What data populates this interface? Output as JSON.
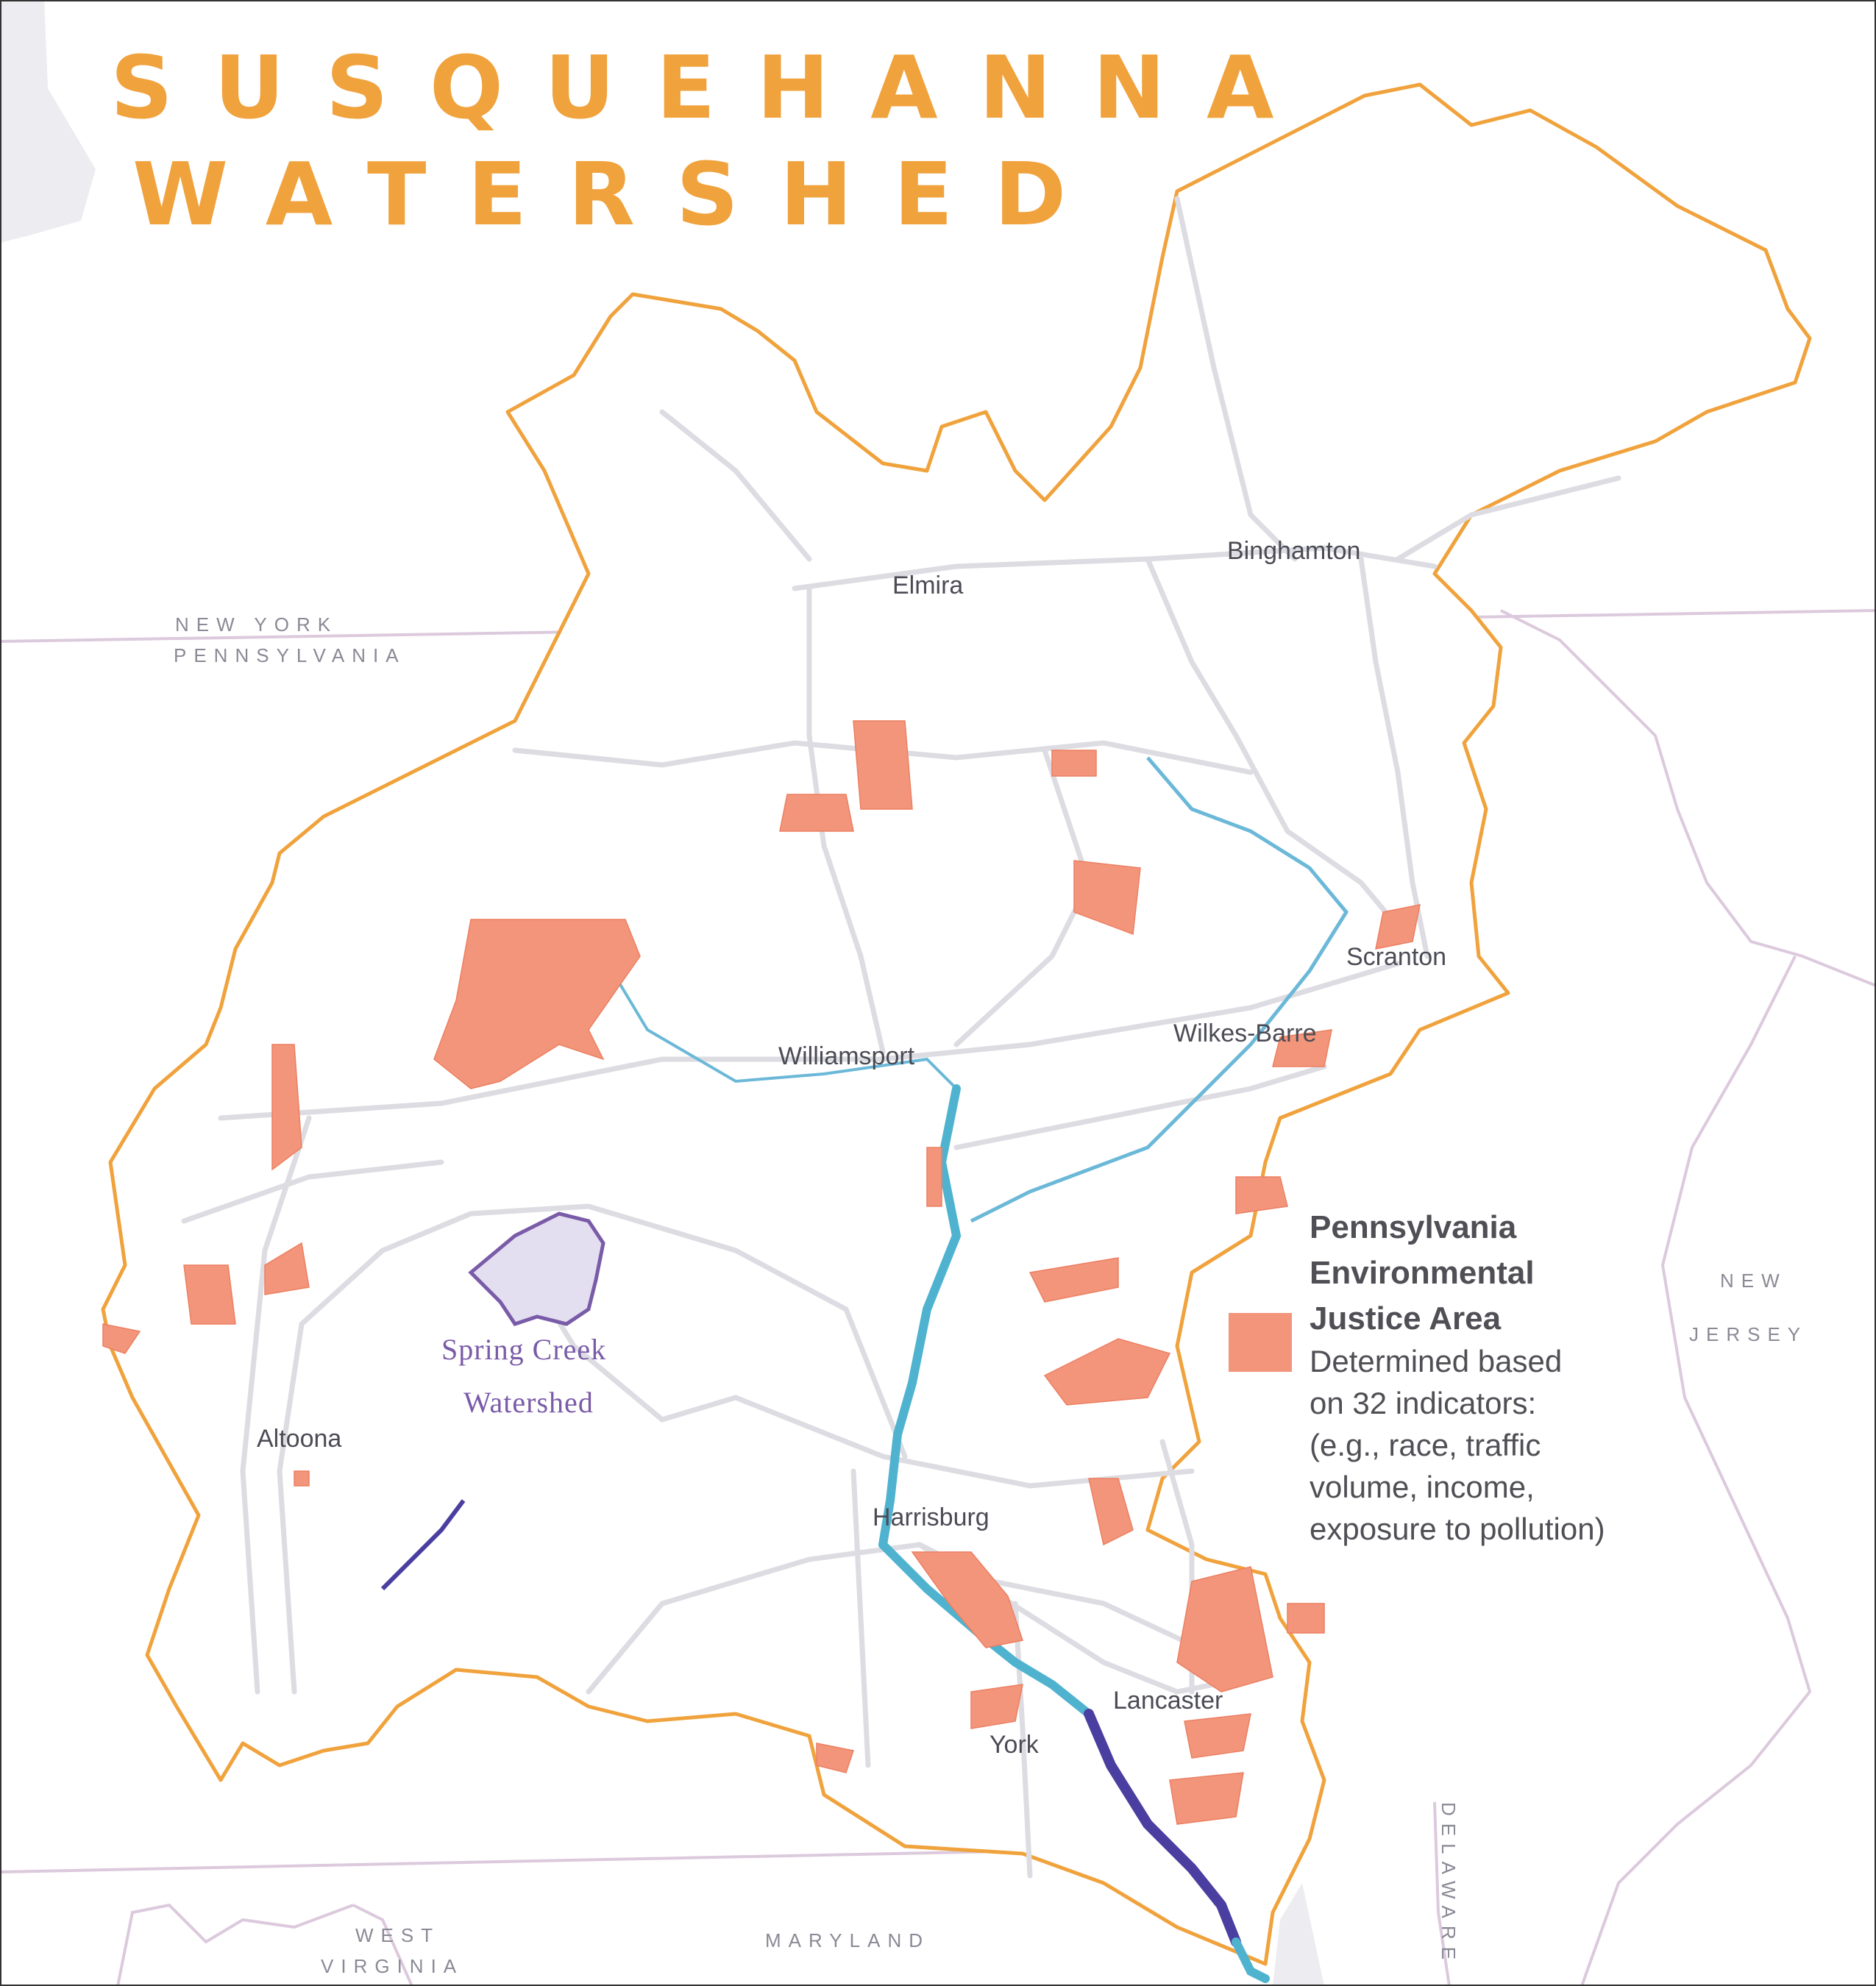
{
  "title": {
    "line1": "SUSQUEHANNA",
    "line2": "WATERSHED"
  },
  "states": {
    "new_york": "NEW YORK",
    "pennsylvania": "PENNSYLVANIA",
    "new_jersey_1": "NEW",
    "new_jersey_2": "JERSEY",
    "delaware": "DELAWARE",
    "maryland": "MARYLAND",
    "west_virginia_1": "WEST",
    "west_virginia_2": "VIRGINIA"
  },
  "cities": {
    "elmira": "Elmira",
    "binghamton": "Binghamton",
    "scranton": "Scranton",
    "wilkes_barre": "Wilkes-Barre",
    "williamsport": "Williamsport",
    "altoona": "Altoona",
    "harrisburg": "Harrisburg",
    "york": "York",
    "lancaster": "Lancaster"
  },
  "spring_creek": {
    "line1": "Spring Creek",
    "line2": "Watershed"
  },
  "legend": {
    "title_1": "Pennsylvania",
    "title_2": "Environmental",
    "title_3": "Justice Area",
    "desc_1": "Determined based",
    "desc_2": "on 32 indicators:",
    "desc_3": "(e.g., race, traffic",
    "desc_4": "volume, income,",
    "desc_5": "exposure to pollution)"
  },
  "colors": {
    "watershed_boundary": "#f0a23c",
    "ej_area": "#f2957a",
    "river_main": "#4fb3d0",
    "river_lower": "#4a3fa0",
    "spring_creek": "#7a5ba8",
    "spring_creek_fill": "#e3dff0",
    "roads": "#d9d9df",
    "state_lines": "#dcc9dd"
  }
}
